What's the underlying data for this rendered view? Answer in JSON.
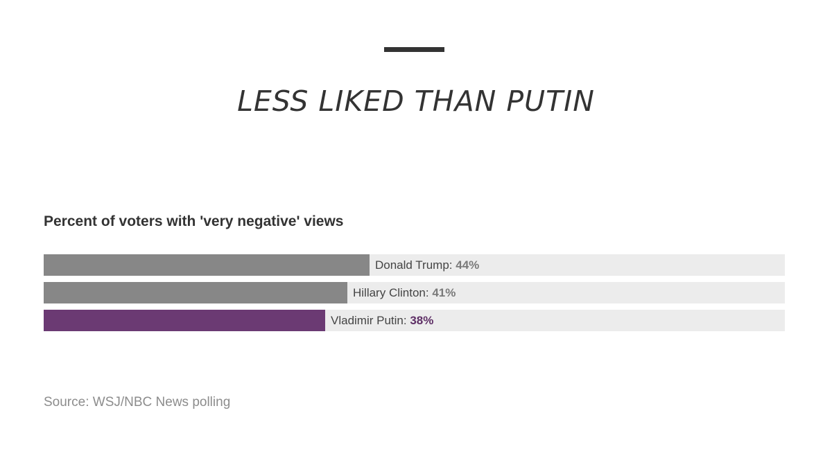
{
  "headline": "LESS LIKED THAN PUTIN",
  "source": "Source: WSJ/NBC News polling",
  "colors": {
    "default_bar": "#878787",
    "highlight_bar": "#6b3a73",
    "track": "#ececec",
    "default_value_text": "#7a7a7a",
    "highlight_value_text": "#5e2f66"
  },
  "chart_data": {
    "type": "bar",
    "orientation": "horizontal",
    "title": "Percent of voters with 'very negative' views",
    "xlim": [
      0,
      100
    ],
    "grid": false,
    "categories": [
      "Donald Trump",
      "Hillary Clinton",
      "Vladimir Putin"
    ],
    "values": [
      44,
      41,
      38
    ],
    "value_labels": [
      "44%",
      "41%",
      "38%"
    ],
    "highlighted": [
      false,
      false,
      true
    ]
  }
}
